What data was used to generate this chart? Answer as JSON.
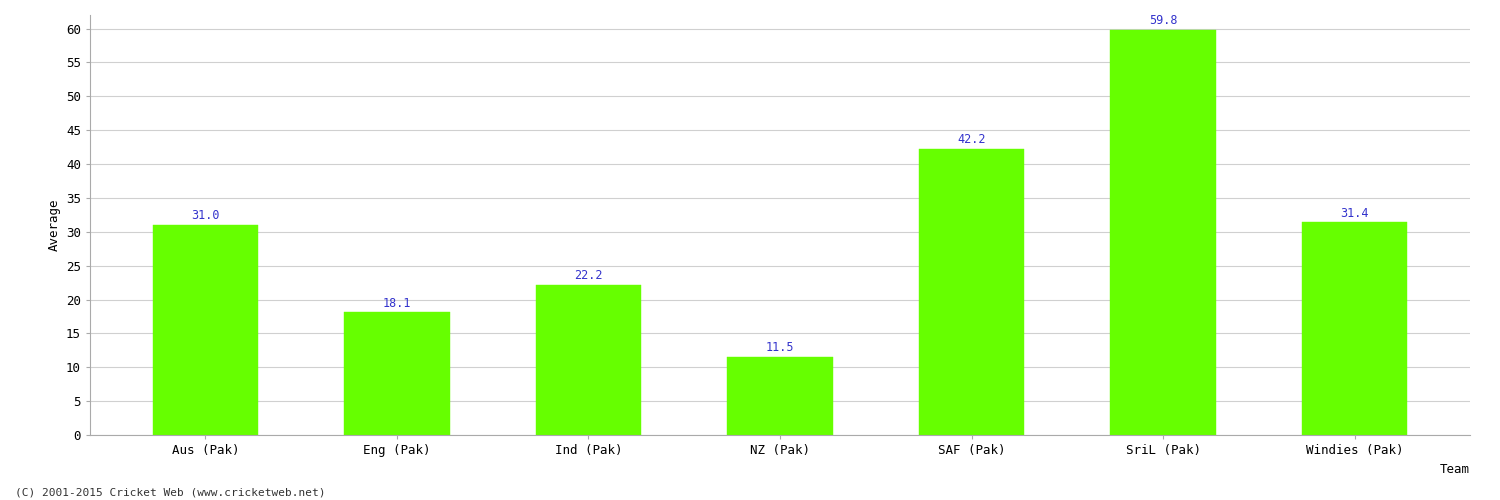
{
  "categories": [
    "Aus (Pak)",
    "Eng (Pak)",
    "Ind (Pak)",
    "NZ (Pak)",
    "SAF (Pak)",
    "SriL (Pak)",
    "Windies (Pak)"
  ],
  "values": [
    31.0,
    18.1,
    22.2,
    11.5,
    42.2,
    59.8,
    31.4
  ],
  "bar_color": "#66ff00",
  "bar_edge_color": "#66ff00",
  "label_color": "#3333cc",
  "xlabel": "Team",
  "ylabel": "Average",
  "ylim": [
    0,
    62
  ],
  "yticks": [
    0,
    5,
    10,
    15,
    20,
    25,
    30,
    35,
    40,
    45,
    50,
    55,
    60
  ],
  "grid_color": "#d0d0d0",
  "background_color": "#ffffff",
  "footer": "(C) 2001-2015 Cricket Web (www.cricketweb.net)",
  "label_fontsize": 8.5,
  "axis_fontsize": 9,
  "xlabel_fontsize": 9,
  "bar_width": 0.55
}
